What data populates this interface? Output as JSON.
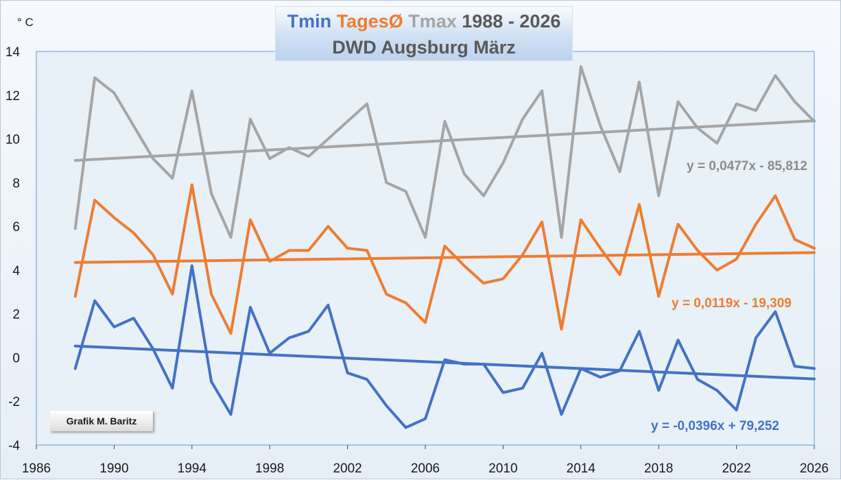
{
  "chart_data": {
    "type": "line",
    "title_parts": [
      {
        "text": "Tmin",
        "color": "#4472c4"
      },
      {
        "text": "TagesØ",
        "color": "#ed7d31"
      },
      {
        "text": "Tmax",
        "color": "#a5a5a5"
      },
      {
        "text": "1988 - 2026",
        "color": "#595959"
      }
    ],
    "subtitle": "DWD Augsburg März",
    "unit_label": "° C",
    "xlim": [
      1986,
      2026
    ],
    "ylim": [
      -4,
      14
    ],
    "x_ticks": [
      "1986",
      "1990",
      "1994",
      "1998",
      "2002",
      "2006",
      "2010",
      "2014",
      "2018",
      "2022",
      "2026"
    ],
    "y_ticks": [
      "-4",
      "-2",
      "0",
      "2",
      "4",
      "6",
      "8",
      "10",
      "12",
      "14"
    ],
    "grid": false,
    "x": [
      1988,
      1989,
      1990,
      1991,
      1992,
      1993,
      1994,
      1995,
      1996,
      1997,
      1998,
      1999,
      2000,
      2001,
      2002,
      2003,
      2004,
      2005,
      2006,
      2007,
      2008,
      2009,
      2010,
      2011,
      2012,
      2013,
      2014,
      2015,
      2016,
      2017,
      2018,
      2019,
      2020,
      2021,
      2022,
      2023,
      2024,
      2025,
      2026
    ],
    "series": [
      {
        "key": "tmax",
        "color": "#a5a5a5",
        "values": [
          5.9,
          12.8,
          12.1,
          10.6,
          9.1,
          8.2,
          12.2,
          7.5,
          5.5,
          10.9,
          9.1,
          9.6,
          9.2,
          10.0,
          10.8,
          11.6,
          8.0,
          7.6,
          5.5,
          10.8,
          8.4,
          7.4,
          8.9,
          10.9,
          12.2,
          5.5,
          13.3,
          10.6,
          8.5,
          12.6,
          7.4,
          11.7,
          10.5,
          9.8,
          11.6,
          11.3,
          12.9,
          11.7,
          10.8
        ],
        "trend": {
          "slope": 0.0477,
          "intercept": -85.812,
          "label": "y = 0,0477x - 85,812"
        }
      },
      {
        "key": "mean",
        "color": "#ed7d31",
        "values": [
          2.8,
          7.2,
          6.4,
          5.7,
          4.7,
          2.9,
          7.9,
          2.9,
          1.1,
          6.3,
          4.4,
          4.9,
          4.9,
          6.0,
          5.0,
          4.9,
          2.9,
          2.5,
          1.6,
          5.1,
          4.2,
          3.4,
          3.6,
          4.7,
          6.2,
          1.3,
          6.3,
          5.0,
          3.8,
          7.0,
          2.8,
          6.1,
          4.9,
          4.0,
          4.5,
          6.1,
          7.4,
          5.4,
          5.0
        ],
        "trend": {
          "slope": 0.0119,
          "intercept": -19.309,
          "label": "y = 0,0119x - 19,309"
        }
      },
      {
        "key": "tmin",
        "color": "#4472c4",
        "values": [
          -0.5,
          2.6,
          1.4,
          1.8,
          0.4,
          -1.4,
          4.2,
          -1.1,
          -2.6,
          2.3,
          0.2,
          0.9,
          1.2,
          2.4,
          -0.7,
          -1.0,
          -2.2,
          -3.2,
          -2.8,
          -0.1,
          -0.3,
          -0.3,
          -1.6,
          -1.4,
          0.2,
          -2.6,
          -0.5,
          -0.9,
          -0.6,
          1.2,
          -1.5,
          0.8,
          -1.0,
          -1.5,
          -2.4,
          0.9,
          2.1,
          -0.4,
          -0.5
        ],
        "trend": {
          "slope": -0.0396,
          "intercept": 79.252,
          "label": "y = -0,0396x + 79,252"
        }
      }
    ],
    "credit": "Grafik M. Baritz"
  }
}
